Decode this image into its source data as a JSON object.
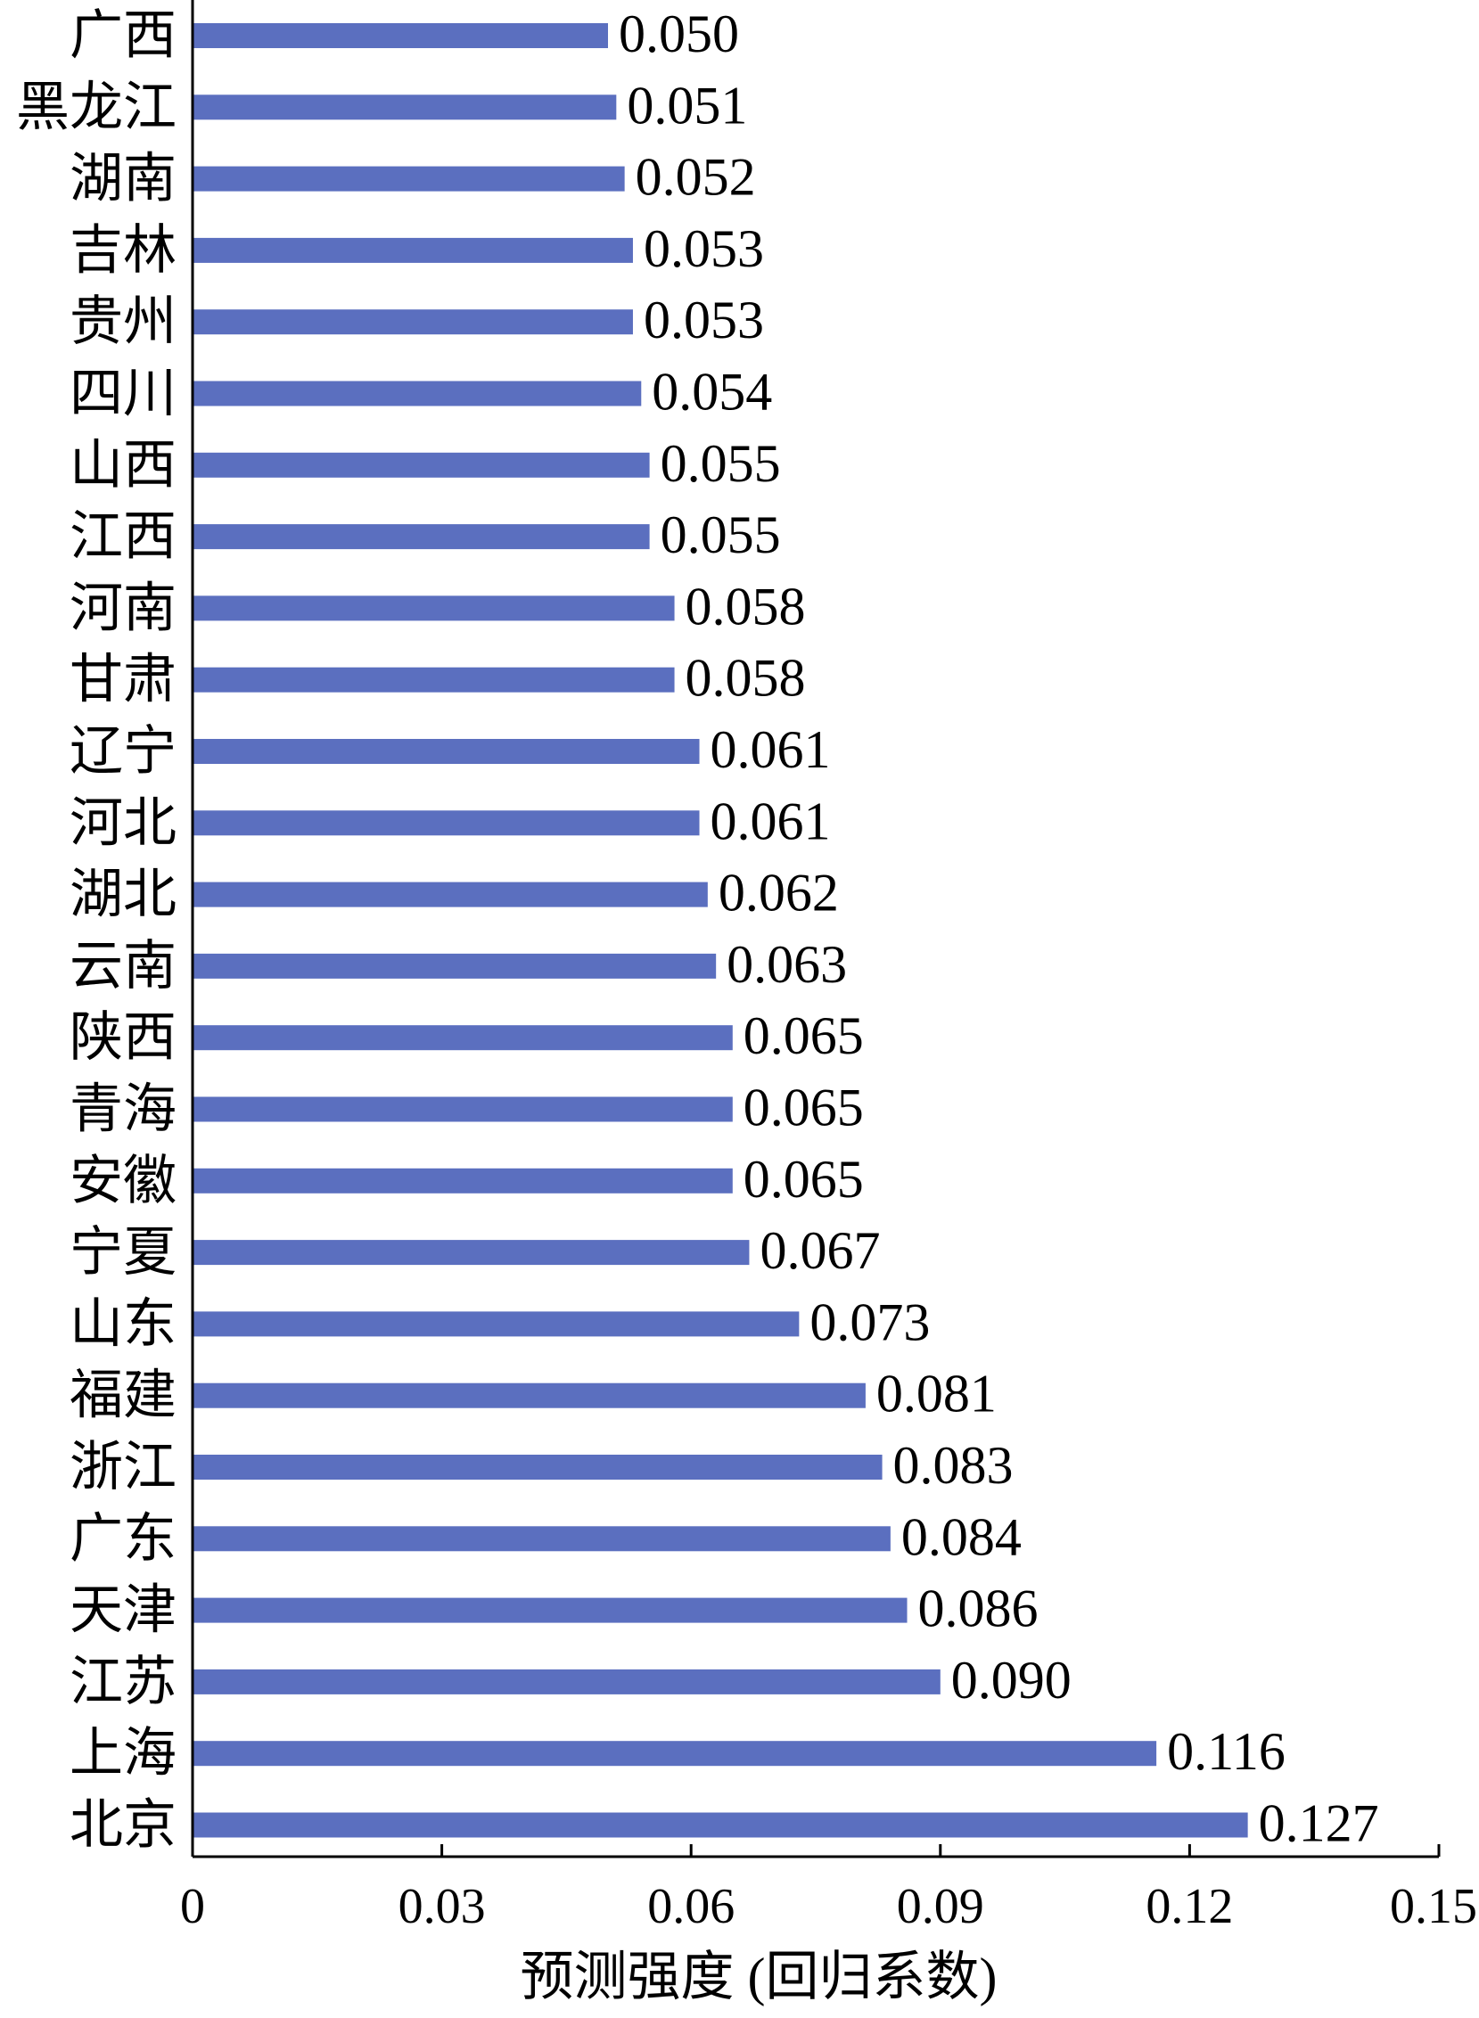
{
  "chart_data": {
    "type": "bar",
    "orientation": "horizontal",
    "categories": [
      "广西",
      "黑龙江",
      "湖南",
      "吉林",
      "贵州",
      "四川",
      "山西",
      "江西",
      "河南",
      "甘肃",
      "辽宁",
      "河北",
      "湖北",
      "云南",
      "陕西",
      "青海",
      "安徽",
      "宁夏",
      "山东",
      "福建",
      "浙江",
      "广东",
      "天津",
      "江苏",
      "上海",
      "北京"
    ],
    "values": [
      0.05,
      0.051,
      0.052,
      0.053,
      0.053,
      0.054,
      0.055,
      0.055,
      0.058,
      0.058,
      0.061,
      0.061,
      0.062,
      0.063,
      0.065,
      0.065,
      0.065,
      0.067,
      0.073,
      0.081,
      0.083,
      0.084,
      0.086,
      0.09,
      0.116,
      0.127
    ],
    "value_labels": [
      "0.050",
      "0.051",
      "0.052",
      "0.053",
      "0.053",
      "0.054",
      "0.055",
      "0.055",
      "0.058",
      "0.058",
      "0.061",
      "0.061",
      "0.062",
      "0.063",
      "0.065",
      "0.065",
      "0.065",
      "0.067",
      "0.073",
      "0.081",
      "0.083",
      "0.084",
      "0.086",
      "0.090",
      "0.116",
      "0.127"
    ],
    "xlabel": "预测强度 (回归系数)",
    "ylabel": "",
    "title": "",
    "xlim": [
      0,
      0.15
    ],
    "xticks": [
      0,
      0.03,
      0.06,
      0.09,
      0.12,
      0.15
    ],
    "xtick_labels": [
      "0",
      "0.03",
      "0.06",
      "0.09",
      "0.12",
      "0.15"
    ],
    "bar_color": "#5b6fbf",
    "grid": false,
    "legend": "none"
  }
}
